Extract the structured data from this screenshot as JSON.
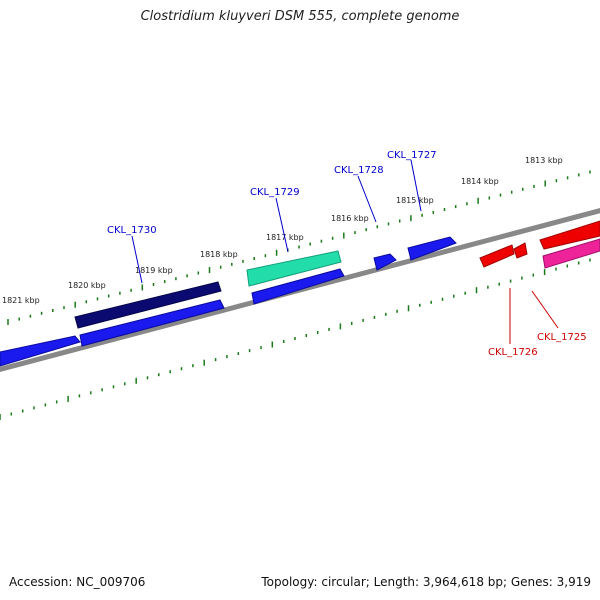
{
  "title": "Clostridium kluyveri DSM 555, complete genome",
  "footer": {
    "accession": "Accession: NC_009706",
    "summary": "Topology: circular; Length: 3,964,618 bp; Genes: 3,919"
  },
  "map": {
    "backbone_color": "#888888",
    "tick_color": "#1a7a1a",
    "scale_labels": [
      "1821 kbp",
      "1820 kbp",
      "1819 kbp",
      "1818 kbp",
      "1817 kbp",
      "1816 kbp",
      "1815 kbp",
      "1814 kbp",
      "1813 kbp"
    ],
    "gene_labels": [
      {
        "text": "CKL_1730",
        "color": "#0000cc"
      },
      {
        "text": "CKL_1729",
        "color": "#0000cc"
      },
      {
        "text": "CKL_1728",
        "color": "#0000cc"
      },
      {
        "text": "CKL_1727",
        "color": "#0000cc"
      },
      {
        "text": "CKL_1726",
        "color": "#cc0000"
      },
      {
        "text": "CKL_1725",
        "color": "#cc0000"
      }
    ],
    "feature_colors": {
      "cds_plus": "#1a1aee",
      "cds_plus_dark": "#0a0a70",
      "cds_plus_highlight": "#22ddaa",
      "cds_minus": "#ee0000",
      "cds_minus_pink": "#ee2299"
    }
  }
}
